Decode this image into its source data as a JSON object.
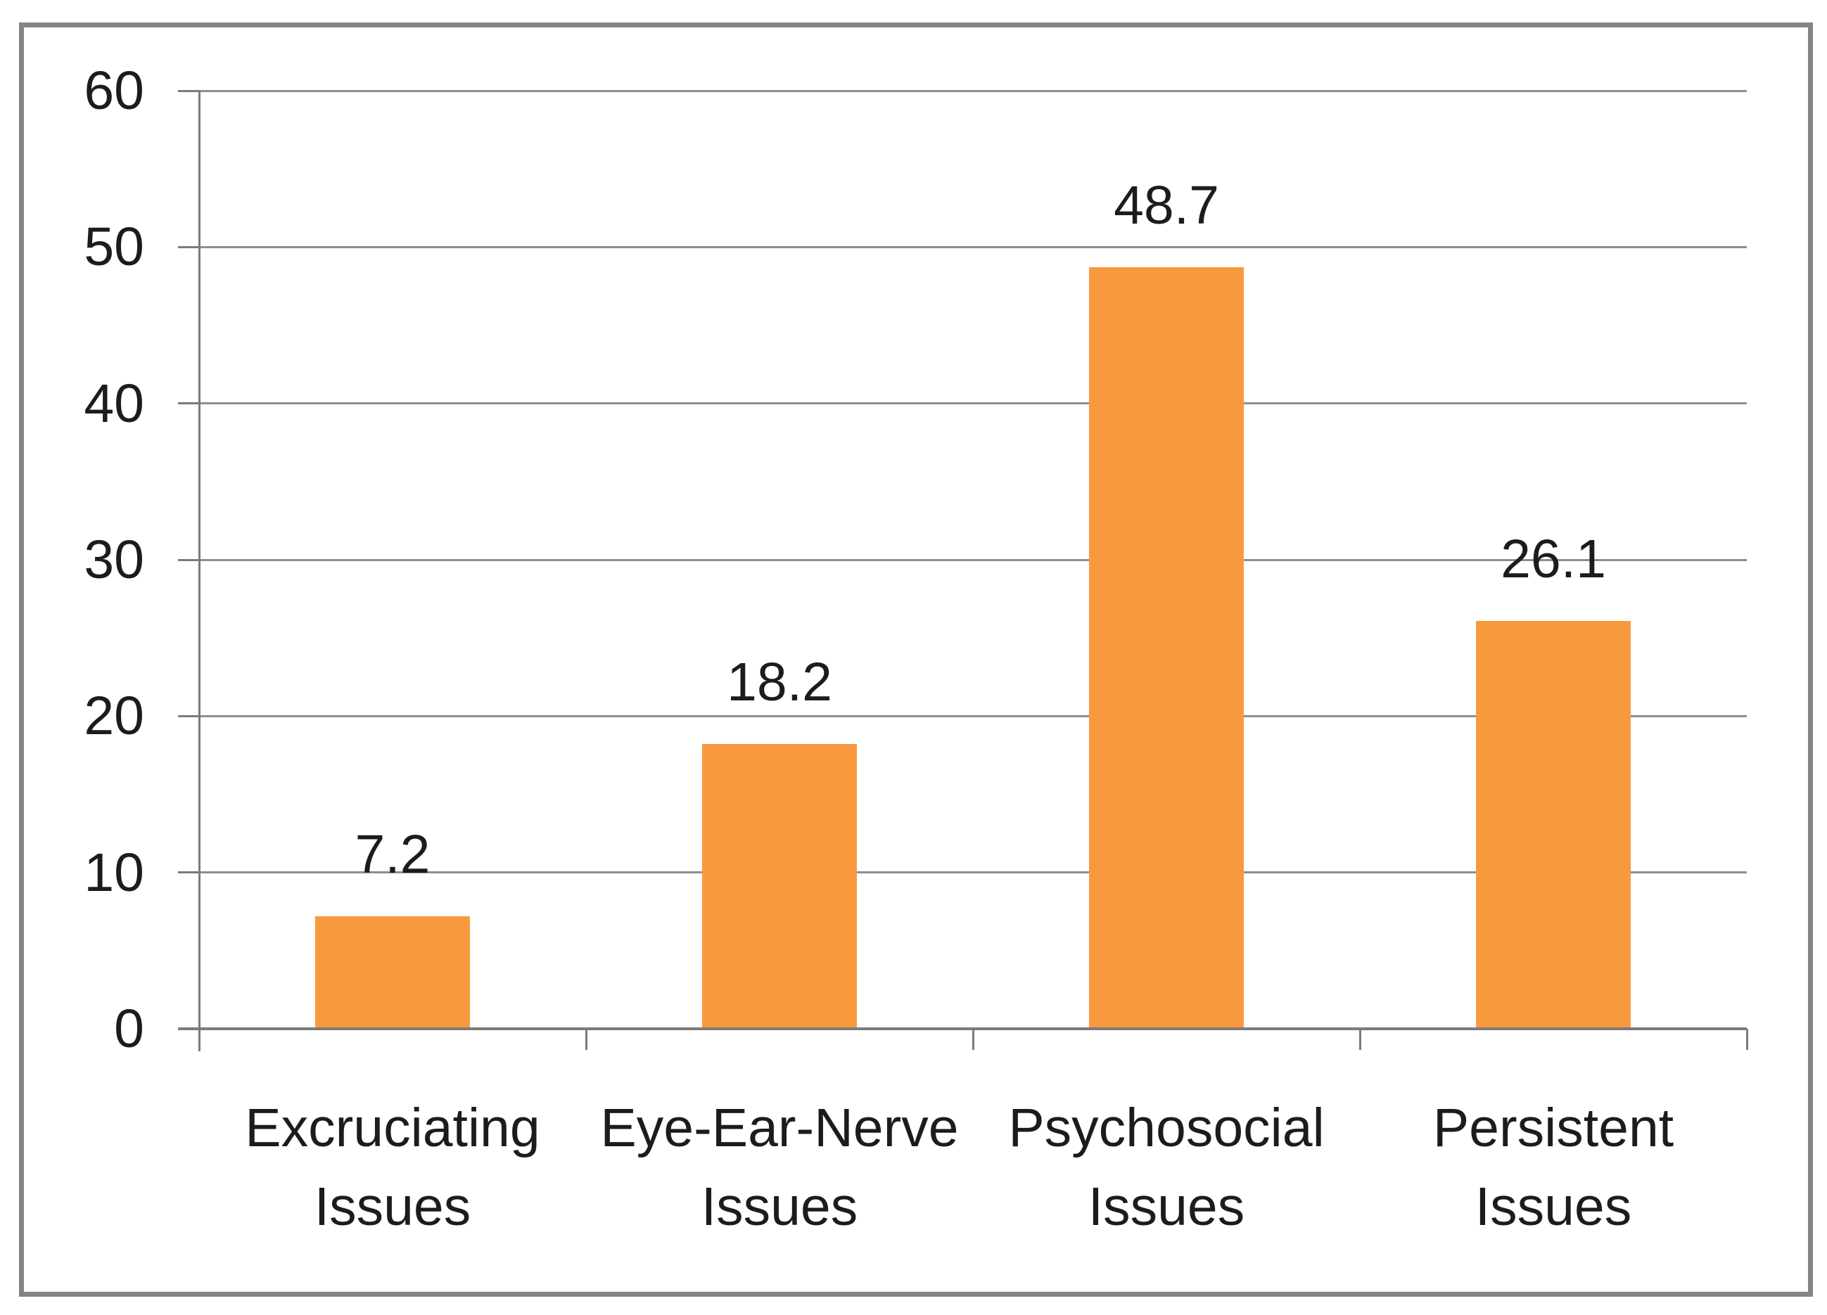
{
  "chart_data": {
    "type": "bar",
    "categories": [
      "Excruciating Issues",
      "Eye-Ear-Nerve Issues",
      "Psychosocial Issues",
      "Persistent Issues"
    ],
    "category_lines": [
      [
        "Excruciating",
        "Issues"
      ],
      [
        "Eye-Ear-Nerve",
        "Issues"
      ],
      [
        "Psychosocial",
        "Issues"
      ],
      [
        "Persistent",
        "Issues"
      ]
    ],
    "values": [
      7.2,
      18.2,
      48.7,
      26.1
    ],
    "value_labels": [
      "7.2",
      "18.2",
      "48.7",
      "26.1"
    ],
    "ylim": [
      0,
      60
    ],
    "ytick_step": 10,
    "ytick_labels": [
      "0",
      "10",
      "20",
      "30",
      "40",
      "50",
      "60"
    ],
    "grid": "horizontal",
    "legend": "none",
    "xlabel": "",
    "ylabel": "",
    "colors": {
      "bar": "#F9993E",
      "gridline": "#8E8E8E",
      "axis": "#7B7B7B",
      "frame": "#848484",
      "text": "#1C1C1C"
    }
  }
}
